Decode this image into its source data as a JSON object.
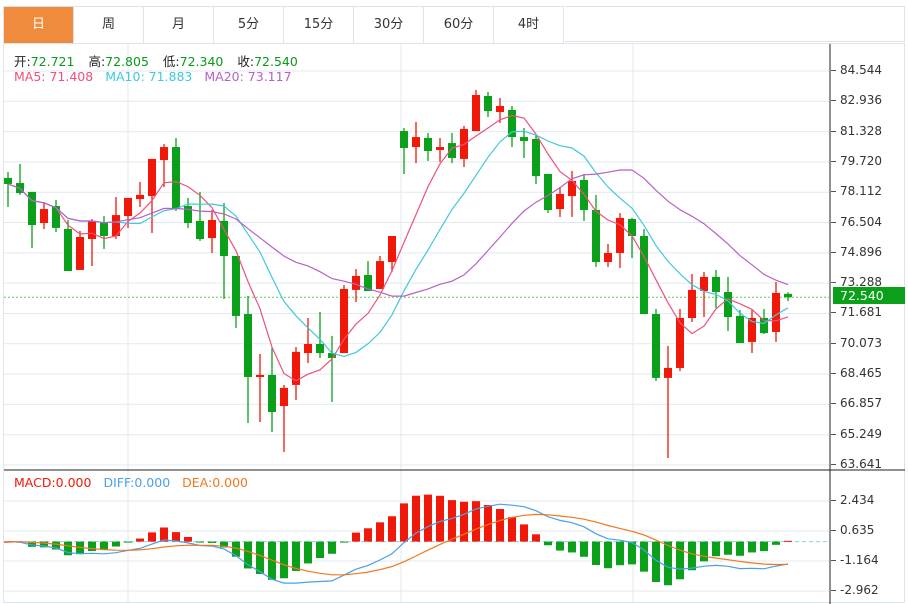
{
  "tabs": [
    {
      "label": "日",
      "active": true
    },
    {
      "label": "周"
    },
    {
      "label": "月"
    },
    {
      "label": "5分"
    },
    {
      "label": "15分"
    },
    {
      "label": "30分"
    },
    {
      "label": "60分"
    },
    {
      "label": "4时"
    }
  ],
  "ohlc_legend": {
    "open_label": "开:",
    "open": "72.721",
    "high_label": "高:",
    "high": "72.805",
    "low_label": "低:",
    "low": "72.340",
    "close_label": "收:",
    "close": "72.540"
  },
  "ma_legend": {
    "ma5": "MA5: 71.408",
    "ma10": "MA10: 71.883",
    "ma20": "MA20: 73.117"
  },
  "macd_legend": {
    "macd": "MACD:0.000",
    "diff": "DIFF:0.000",
    "dea": "DEA:0.000"
  },
  "current_price": "72.540",
  "colors": {
    "up": "#f01808",
    "down": "#0aa01a",
    "ma5": "#f0507a",
    "ma10": "#40c8dc",
    "ma20": "#b860c8",
    "diff": "#4aa0e8",
    "dea": "#f07820",
    "accent": "#f08a3c"
  },
  "chart_data": {
    "type": "candlestick",
    "price_axis_ticks": [
      "84.544",
      "82.936",
      "81.328",
      "79.720",
      "78.112",
      "76.504",
      "74.896",
      "73.288",
      "71.681",
      "70.073",
      "68.465",
      "66.857",
      "65.249",
      "63.641"
    ],
    "price_range": [
      63.641,
      84.544
    ],
    "macd_axis_ticks": [
      "2.434",
      "0.635",
      "-1.164",
      "-2.962"
    ],
    "ohlc": [
      [
        78.87,
        79.19,
        77.33,
        78.55
      ],
      [
        78.6,
        79.61,
        77.97,
        78.07
      ],
      [
        78.13,
        78.13,
        75.15,
        76.37
      ],
      [
        76.48,
        77.59,
        76.16,
        77.22
      ],
      [
        77.38,
        77.7,
        76.0,
        76.22
      ],
      [
        76.16,
        76.64,
        73.93,
        73.93
      ],
      [
        73.99,
        76.06,
        73.99,
        75.74
      ],
      [
        75.63,
        76.69,
        74.2,
        76.59
      ],
      [
        76.48,
        76.85,
        75.1,
        75.79
      ],
      [
        75.79,
        77.86,
        75.63,
        76.9
      ],
      [
        76.85,
        77.81,
        76.22,
        77.81
      ],
      [
        77.75,
        78.66,
        77.33,
        77.97
      ],
      [
        77.91,
        79.88,
        75.95,
        79.88
      ],
      [
        79.82,
        80.67,
        78.39,
        80.51
      ],
      [
        80.51,
        80.99,
        77.12,
        77.22
      ],
      [
        77.38,
        77.81,
        76.22,
        76.48
      ],
      [
        76.59,
        78.13,
        75.53,
        75.63
      ],
      [
        75.68,
        77.17,
        74.89,
        76.64
      ],
      [
        76.59,
        77.54,
        72.45,
        74.73
      ],
      [
        74.73,
        74.73,
        70.91,
        71.55
      ],
      [
        71.65,
        72.61,
        65.87,
        68.31
      ],
      [
        68.31,
        69.53,
        65.92,
        68.42
      ],
      [
        68.42,
        69.85,
        65.39,
        66.45
      ],
      [
        66.77,
        67.89,
        64.33,
        67.73
      ],
      [
        67.89,
        69.9,
        67.09,
        69.64
      ],
      [
        69.58,
        71.44,
        69.05,
        70.06
      ],
      [
        70.06,
        71.76,
        69.32,
        69.58
      ],
      [
        69.58,
        70.49,
        66.98,
        69.32
      ],
      [
        69.58,
        73.19,
        69.58,
        72.98
      ],
      [
        72.93,
        74.04,
        72.29,
        73.67
      ],
      [
        73.72,
        74.46,
        72.87,
        72.87
      ],
      [
        72.98,
        74.73,
        72.98,
        74.46
      ],
      [
        74.41,
        75.79,
        73.88,
        75.79
      ],
      [
        81.36,
        81.52,
        79.08,
        80.46
      ],
      [
        80.51,
        81.84,
        79.66,
        81.04
      ],
      [
        80.99,
        81.26,
        79.77,
        80.3
      ],
      [
        80.35,
        80.99,
        79.72,
        80.51
      ],
      [
        80.72,
        81.26,
        79.66,
        79.93
      ],
      [
        79.88,
        81.63,
        79.45,
        81.47
      ],
      [
        81.36,
        83.54,
        81.36,
        83.27
      ],
      [
        83.22,
        83.43,
        82.1,
        82.42
      ],
      [
        82.37,
        83.11,
        81.79,
        82.69
      ],
      [
        82.48,
        82.69,
        80.51,
        81.04
      ],
      [
        81.04,
        81.52,
        79.93,
        80.83
      ],
      [
        80.94,
        81.15,
        78.55,
        78.97
      ],
      [
        79.08,
        79.08,
        77.01,
        77.17
      ],
      [
        77.22,
        78.39,
        76.8,
        78.02
      ],
      [
        77.91,
        79.24,
        76.8,
        78.71
      ],
      [
        78.76,
        79.08,
        76.59,
        77.17
      ],
      [
        77.17,
        77.97,
        74.15,
        74.41
      ],
      [
        74.41,
        75.37,
        74.15,
        74.89
      ],
      [
        74.89,
        77.01,
        74.09,
        76.75
      ],
      [
        76.69,
        76.75,
        74.62,
        75.79
      ],
      [
        75.79,
        76.16,
        71.65,
        71.65
      ],
      [
        71.65,
        71.92,
        68.1,
        68.26
      ],
      [
        68.26,
        69.96,
        64.01,
        68.79
      ],
      [
        68.79,
        71.92,
        68.63,
        71.44
      ],
      [
        71.44,
        73.77,
        71.23,
        72.93
      ],
      [
        72.87,
        73.88,
        71.49,
        73.62
      ],
      [
        73.62,
        73.99,
        71.97,
        72.82
      ],
      [
        72.82,
        73.62,
        70.75,
        71.49
      ],
      [
        71.55,
        71.86,
        70.11,
        70.11
      ],
      [
        70.17,
        71.86,
        69.58,
        71.44
      ],
      [
        71.44,
        71.92,
        70.59,
        70.64
      ],
      [
        70.7,
        73.35,
        70.17,
        72.77
      ],
      [
        72.721,
        72.805,
        72.34,
        72.54
      ]
    ]
  }
}
